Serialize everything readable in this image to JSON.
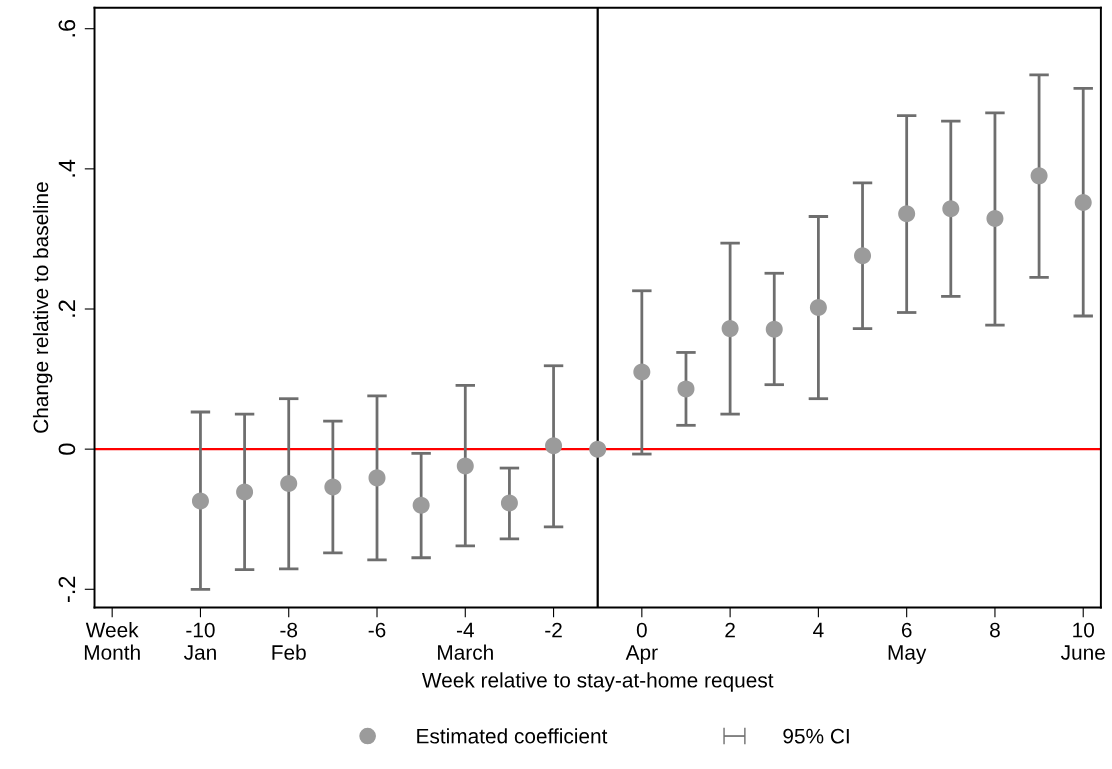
{
  "chart_data": {
    "type": "scatter",
    "xlabel": "Week relative to stay-at-home request",
    "ylabel": "Change relative to baseline",
    "x": [
      -10,
      -9,
      -8,
      -7,
      -6,
      -5,
      -4,
      -3,
      -2,
      -1,
      0,
      1,
      2,
      3,
      4,
      5,
      6,
      7,
      8,
      9,
      10
    ],
    "series": [
      {
        "name": "Estimated coefficient",
        "color": "#9b9b9b",
        "values": [
          -0.074,
          -0.061,
          -0.049,
          -0.054,
          -0.041,
          -0.08,
          -0.024,
          -0.077,
          0.005,
          0,
          0.11,
          0.086,
          0.172,
          0.171,
          0.202,
          0.276,
          0.336,
          0.343,
          0.329,
          0.39,
          0.352
        ],
        "errors": [
          [
            -0.2,
            0.053
          ],
          [
            -0.172,
            0.05
          ],
          [
            -0.171,
            0.072
          ],
          [
            -0.148,
            0.04
          ],
          [
            -0.158,
            0.076
          ],
          [
            -0.155,
            -0.006
          ],
          [
            -0.138,
            0.091
          ],
          [
            -0.128,
            -0.027
          ],
          [
            -0.111,
            0.119
          ],
          null,
          [
            -0.007,
            0.226
          ],
          [
            0.034,
            0.138
          ],
          [
            0.05,
            0.294
          ],
          [
            0.092,
            0.251
          ],
          [
            0.072,
            0.332
          ],
          [
            0.172,
            0.38
          ],
          [
            0.195,
            0.476
          ],
          [
            0.218,
            0.468
          ],
          [
            0.177,
            0.48
          ],
          [
            0.245,
            0.534
          ],
          [
            0.19,
            0.515
          ]
        ]
      }
    ],
    "annotations": [
      "95% CI"
    ],
    "xlim": [
      -12.4,
      10.4
    ],
    "xticks": [
      {
        "value": -12,
        "label": "Week\nMonth"
      },
      {
        "value": -10,
        "label": "-10\nJan"
      },
      {
        "value": -8,
        "label": "-8\nFeb"
      },
      {
        "value": -6,
        "label": "-6\n"
      },
      {
        "value": -4,
        "label": "-4\nMarch"
      },
      {
        "value": -2,
        "label": "-2\n"
      },
      {
        "value": 0,
        "label": "0\nApr"
      },
      {
        "value": 2,
        "label": "2\n"
      },
      {
        "value": 4,
        "label": "4\n"
      },
      {
        "value": 6,
        "label": "6\nMay"
      },
      {
        "value": 8,
        "label": "8\n"
      },
      {
        "value": 10,
        "label": "10\nJune"
      }
    ],
    "ylim": [
      -0.226,
      0.63
    ],
    "yticks": [
      {
        "value": -0.2,
        "label": "-.2"
      },
      0,
      {
        "value": 0.2,
        "label": ".2"
      },
      {
        "value": 0.4,
        "label": ".4"
      },
      {
        "value": 0.6,
        "label": ".6"
      }
    ],
    "ref_lines": [
      {
        "axis": "y",
        "value": 0,
        "color": "#ff0000"
      },
      {
        "axis": "x",
        "value": -1,
        "color": "#000000"
      }
    ],
    "marker": "circle",
    "legend": "bottom",
    "grid": false
  }
}
